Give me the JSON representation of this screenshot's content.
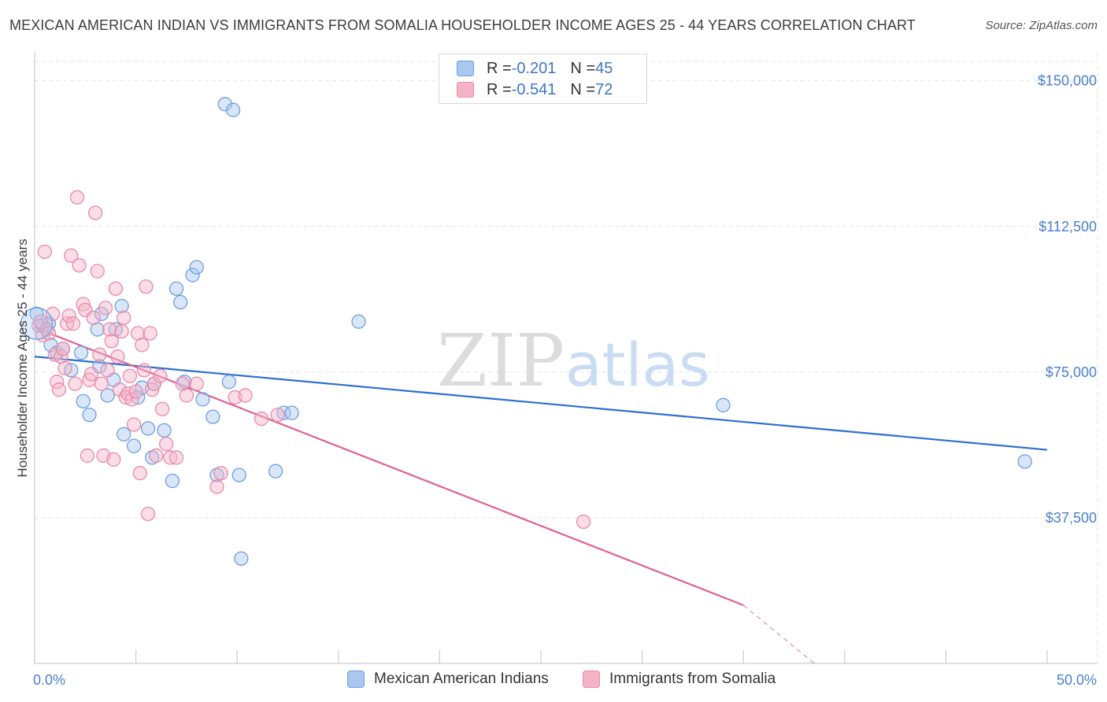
{
  "header": {
    "title": "MEXICAN AMERICAN INDIAN VS IMMIGRANTS FROM SOMALIA HOUSEHOLDER INCOME AGES 25 - 44 YEARS CORRELATION CHART",
    "source": "Source: ZipAtlas.com"
  },
  "legend": {
    "series1": {
      "r_label": "R = ",
      "r_value": "-0.201",
      "n_label": "N = ",
      "n_value": "45"
    },
    "series2": {
      "r_label": "R = ",
      "r_value": "-0.541",
      "n_label": "N = ",
      "n_value": "72"
    }
  },
  "watermark": {
    "zip": "ZIP",
    "atlas": "atlas"
  },
  "colors": {
    "blue_fill": "#a9c8f0",
    "blue_stroke": "#6f9fe0",
    "blue_line": "#2f6fd0",
    "pink_fill": "#f5b3c8",
    "pink_stroke": "#e88aa9",
    "pink_line": "#e0618f"
  },
  "chart_data": {
    "type": "scatter",
    "title": "MEXICAN AMERICAN INDIAN VS IMMIGRANTS FROM SOMALIA HOUSEHOLDER INCOME AGES 25 - 44 YEARS CORRELATION CHART",
    "xlabel": "",
    "ylabel": "Householder Income Ages 25 - 44 years",
    "xlim": [
      0,
      50
    ],
    "ylim": [
      0,
      155000
    ],
    "x_tick_labels": [
      "0.0%",
      "50.0%"
    ],
    "y_ticks": [
      37500,
      75000,
      112500,
      150000
    ],
    "y_tick_labels": [
      "$37,500",
      "$75,000",
      "$112,500",
      "$150,000"
    ],
    "grid": true,
    "series": [
      {
        "name": "Mexican American Indians",
        "color": "#a9c8f0",
        "trend": {
          "x": [
            0,
            50
          ],
          "y": [
            79000,
            55000
          ]
        },
        "points": [
          [
            0.1,
            90000
          ],
          [
            0.4,
            87000
          ],
          [
            0.7,
            87500
          ],
          [
            0.8,
            82000
          ],
          [
            1.1,
            80000
          ],
          [
            1.4,
            81000
          ],
          [
            1.8,
            75500
          ],
          [
            2.3,
            80000
          ],
          [
            2.4,
            67500
          ],
          [
            2.7,
            64000
          ],
          [
            3.1,
            86000
          ],
          [
            3.3,
            90000
          ],
          [
            3.2,
            76500
          ],
          [
            3.6,
            69000
          ],
          [
            3.9,
            73000
          ],
          [
            4.0,
            86000
          ],
          [
            4.3,
            92000
          ],
          [
            4.4,
            59000
          ],
          [
            4.9,
            56000
          ],
          [
            5.1,
            68500
          ],
          [
            5.3,
            71000
          ],
          [
            5.6,
            60500
          ],
          [
            5.8,
            53000
          ],
          [
            5.9,
            72000
          ],
          [
            6.4,
            60000
          ],
          [
            6.8,
            47000
          ],
          [
            7.0,
            96500
          ],
          [
            7.2,
            93000
          ],
          [
            7.4,
            72500
          ],
          [
            7.8,
            100000
          ],
          [
            8.0,
            102000
          ],
          [
            8.3,
            68000
          ],
          [
            8.8,
            63500
          ],
          [
            9.0,
            48500
          ],
          [
            9.4,
            144000
          ],
          [
            9.6,
            72500
          ],
          [
            9.8,
            142500
          ],
          [
            10.1,
            48500
          ],
          [
            10.2,
            27000
          ],
          [
            11.9,
            49500
          ],
          [
            12.3,
            64500
          ],
          [
            12.7,
            64500
          ],
          [
            16.0,
            88000
          ],
          [
            34.0,
            66500
          ],
          [
            48.9,
            52000
          ]
        ]
      },
      {
        "name": "Immigrants from Somalia",
        "color": "#f5b3c8",
        "trend": {
          "x": [
            0,
            35
          ],
          "y": [
            86500,
            15000
          ],
          "dashed_to": {
            "x": 38.5,
            "y": 0
          }
        },
        "points": [
          [
            0.2,
            87000
          ],
          [
            0.3,
            88000
          ],
          [
            0.4,
            84500
          ],
          [
            0.5,
            106000
          ],
          [
            0.6,
            86000
          ],
          [
            0.7,
            85000
          ],
          [
            0.9,
            90000
          ],
          [
            1.0,
            79500
          ],
          [
            1.1,
            72500
          ],
          [
            1.2,
            70500
          ],
          [
            1.3,
            79000
          ],
          [
            1.4,
            81000
          ],
          [
            1.5,
            76000
          ],
          [
            1.6,
            87500
          ],
          [
            1.7,
            89500
          ],
          [
            1.8,
            105000
          ],
          [
            1.9,
            87500
          ],
          [
            2.0,
            72000
          ],
          [
            2.1,
            120000
          ],
          [
            2.2,
            102500
          ],
          [
            2.4,
            92500
          ],
          [
            2.5,
            91000
          ],
          [
            2.6,
            53500
          ],
          [
            2.7,
            73000
          ],
          [
            2.8,
            74500
          ],
          [
            2.9,
            89000
          ],
          [
            3.0,
            116000
          ],
          [
            3.1,
            101000
          ],
          [
            3.2,
            79500
          ],
          [
            3.3,
            72000
          ],
          [
            3.4,
            53500
          ],
          [
            3.5,
            91500
          ],
          [
            3.6,
            75500
          ],
          [
            3.7,
            86000
          ],
          [
            3.8,
            83000
          ],
          [
            3.9,
            52500
          ],
          [
            4.0,
            96500
          ],
          [
            4.1,
            79000
          ],
          [
            4.2,
            70500
          ],
          [
            4.3,
            85500
          ],
          [
            4.4,
            89000
          ],
          [
            4.5,
            68500
          ],
          [
            4.6,
            69500
          ],
          [
            4.7,
            74000
          ],
          [
            4.8,
            68000
          ],
          [
            4.9,
            61500
          ],
          [
            5.0,
            70000
          ],
          [
            5.1,
            85000
          ],
          [
            5.2,
            49000
          ],
          [
            5.3,
            82000
          ],
          [
            5.4,
            75500
          ],
          [
            5.5,
            97000
          ],
          [
            5.6,
            38500
          ],
          [
            5.7,
            85000
          ],
          [
            5.8,
            70500
          ],
          [
            5.9,
            72000
          ],
          [
            6.0,
            53500
          ],
          [
            6.2,
            74000
          ],
          [
            6.3,
            65500
          ],
          [
            6.5,
            56500
          ],
          [
            6.7,
            53000
          ],
          [
            7.0,
            53000
          ],
          [
            7.3,
            72000
          ],
          [
            7.5,
            69000
          ],
          [
            8.0,
            72000
          ],
          [
            9.0,
            45500
          ],
          [
            9.2,
            49000
          ],
          [
            9.9,
            68500
          ],
          [
            10.4,
            69000
          ],
          [
            11.2,
            63000
          ],
          [
            12.0,
            64000
          ],
          [
            27.1,
            36500
          ]
        ]
      }
    ]
  },
  "bottom_legend": {
    "item1": "Mexican American Indians",
    "item2": "Immigrants from Somalia"
  }
}
